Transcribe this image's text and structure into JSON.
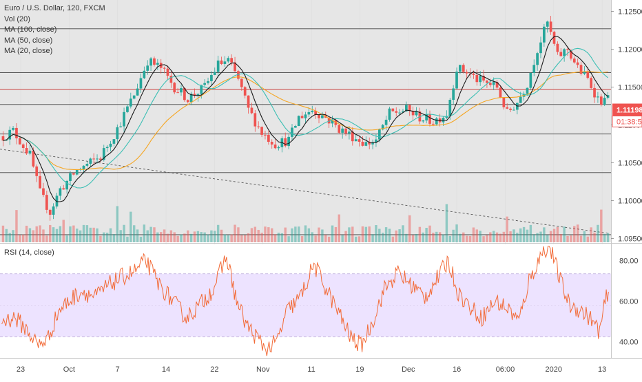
{
  "legend": {
    "symbol": "Euro / U.S. Dollar, 120, FXCM",
    "vol": "Vol (20)",
    "ma100": "MA (100, close)",
    "ma50": "MA (50, close)",
    "ma20": "MA (20, close)"
  },
  "rsi_legend": "RSI (14, close)",
  "price_tag": "1.11198",
  "countdown_tag": "01:38:53",
  "colors": {
    "up": "#26a69a",
    "down": "#ef5350",
    "ma100": "#f5a623",
    "ma50": "#3cbfb4",
    "ma20": "#1a1a1a",
    "rsi_line": "#f26b38",
    "rsi_band": "#ede3ff",
    "price_tag_bg": "#ef5350",
    "trendline": "#555555",
    "background": "#e6e6e6"
  },
  "chart_data": [
    {
      "type": "candlestick",
      "title": "Euro / U.S. Dollar, 120, FXCM",
      "y_ticks": [
        "1.12500",
        "1.12000",
        "1.11500",
        "1.11000",
        "1.10500",
        "1.10000",
        "1.09500"
      ],
      "x_ticks": [
        "23",
        "Oct",
        "7",
        "14",
        "22",
        "Nov",
        "11",
        "19",
        "Dec",
        "16",
        "06:00",
        "2020",
        "13"
      ],
      "ylim": [
        1.0945,
        1.1265
      ],
      "horizontal_levels": [
        1.1227,
        1.1169,
        1.1147,
        1.1127,
        1.1088,
        1.1037,
        1.0955
      ],
      "current_price_level": 1.1147,
      "waypoints": [
        [
          0,
          1.1085
        ],
        [
          3,
          1.1092
        ],
        [
          8,
          1.106
        ],
        [
          11,
          1.101
        ],
        [
          14,
          1.0985
        ],
        [
          17,
          1.1015
        ],
        [
          22,
          1.104
        ],
        [
          26,
          1.105
        ],
        [
          29,
          1.1058
        ],
        [
          34,
          1.1095
        ],
        [
          39,
          1.114
        ],
        [
          43,
          1.1185
        ],
        [
          47,
          1.1175
        ],
        [
          51,
          1.115
        ],
        [
          55,
          1.1135
        ],
        [
          60,
          1.115
        ],
        [
          64,
          1.118
        ],
        [
          67,
          1.1185
        ],
        [
          70,
          1.116
        ],
        [
          73,
          1.112
        ],
        [
          77,
          1.109
        ],
        [
          81,
          1.1075
        ],
        [
          85,
          1.108
        ],
        [
          88,
          1.111
        ],
        [
          92,
          1.112
        ],
        [
          96,
          1.111
        ],
        [
          100,
          1.1095
        ],
        [
          104,
          1.1085
        ],
        [
          108,
          1.1075
        ],
        [
          111,
          1.108
        ],
        [
          115,
          1.1115
        ],
        [
          120,
          1.112
        ],
        [
          124,
          1.111
        ],
        [
          128,
          1.1105
        ],
        [
          132,
          1.1115
        ],
        [
          135,
          1.1175
        ],
        [
          138,
          1.117
        ],
        [
          141,
          1.116
        ],
        [
          144,
          1.1155
        ],
        [
          147,
          1.115
        ],
        [
          150,
          1.1115
        ],
        [
          153,
          1.113
        ],
        [
          156,
          1.1155
        ],
        [
          159,
          1.12
        ],
        [
          162,
          1.1235
        ],
        [
          165,
          1.119
        ],
        [
          168,
          1.12
        ],
        [
          171,
          1.1175
        ],
        [
          174,
          1.116
        ],
        [
          177,
          1.1135
        ],
        [
          179,
          1.113
        ],
        [
          180,
          1.1145
        ]
      ],
      "candle_count": 181,
      "moving_averages": [
        {
          "name": "MA (100, close)",
          "period": 100
        },
        {
          "name": "MA (50, close)",
          "period": 50
        },
        {
          "name": "MA (20, close)",
          "period": 20
        }
      ]
    },
    {
      "type": "line",
      "title": "RSI (14, close)",
      "y_ticks": [
        "80.00",
        "60.00",
        "40.00"
      ],
      "ylim": [
        32,
        88
      ],
      "band": [
        30,
        70
      ],
      "waypoints": [
        [
          0,
          50
        ],
        [
          4,
          52
        ],
        [
          8,
          45
        ],
        [
          11,
          38
        ],
        [
          14,
          42
        ],
        [
          17,
          55
        ],
        [
          20,
          60
        ],
        [
          24,
          65
        ],
        [
          28,
          62
        ],
        [
          32,
          68
        ],
        [
          36,
          72
        ],
        [
          40,
          75
        ],
        [
          43,
          80
        ],
        [
          47,
          68
        ],
        [
          51,
          60
        ],
        [
          55,
          52
        ],
        [
          59,
          58
        ],
        [
          63,
          66
        ],
        [
          67,
          82
        ],
        [
          70,
          60
        ],
        [
          73,
          48
        ],
        [
          76,
          42
        ],
        [
          79,
          36
        ],
        [
          82,
          40
        ],
        [
          85,
          55
        ],
        [
          89,
          62
        ],
        [
          93,
          78
        ],
        [
          97,
          65
        ],
        [
          101,
          52
        ],
        [
          104,
          42
        ],
        [
          107,
          38
        ],
        [
          110,
          48
        ],
        [
          114,
          66
        ],
        [
          118,
          74
        ],
        [
          122,
          68
        ],
        [
          126,
          62
        ],
        [
          130,
          72
        ],
        [
          133,
          80
        ],
        [
          136,
          64
        ],
        [
          140,
          56
        ],
        [
          143,
          52
        ],
        [
          147,
          60
        ],
        [
          151,
          56
        ],
        [
          154,
          50
        ],
        [
          157,
          70
        ],
        [
          161,
          84
        ],
        [
          163,
          88
        ],
        [
          166,
          72
        ],
        [
          169,
          58
        ],
        [
          172,
          56
        ],
        [
          175,
          52
        ],
        [
          178,
          45
        ],
        [
          180,
          62
        ]
      ]
    }
  ]
}
